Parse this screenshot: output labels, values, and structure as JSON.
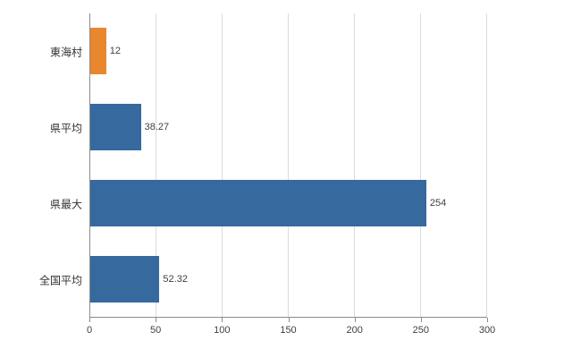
{
  "chart_data": {
    "type": "bar",
    "orientation": "horizontal",
    "title": "",
    "categories": [
      "東海村",
      "県平均",
      "県最大",
      "全国平均"
    ],
    "values": [
      12,
      38.27,
      254,
      52.32
    ],
    "value_labels": [
      "12",
      "38.27",
      "254",
      "52.32"
    ],
    "bar_colors": [
      "#e8872e",
      "#36699e",
      "#36699e",
      "#36699e"
    ],
    "xlim": [
      0,
      300
    ],
    "xticks": [
      0,
      50,
      100,
      150,
      200,
      250,
      300
    ],
    "grid": true,
    "legend": "none",
    "background_color": "#ffffff",
    "gridline_color": "#dcdcdc",
    "axis_color": "#8c8c8c"
  }
}
